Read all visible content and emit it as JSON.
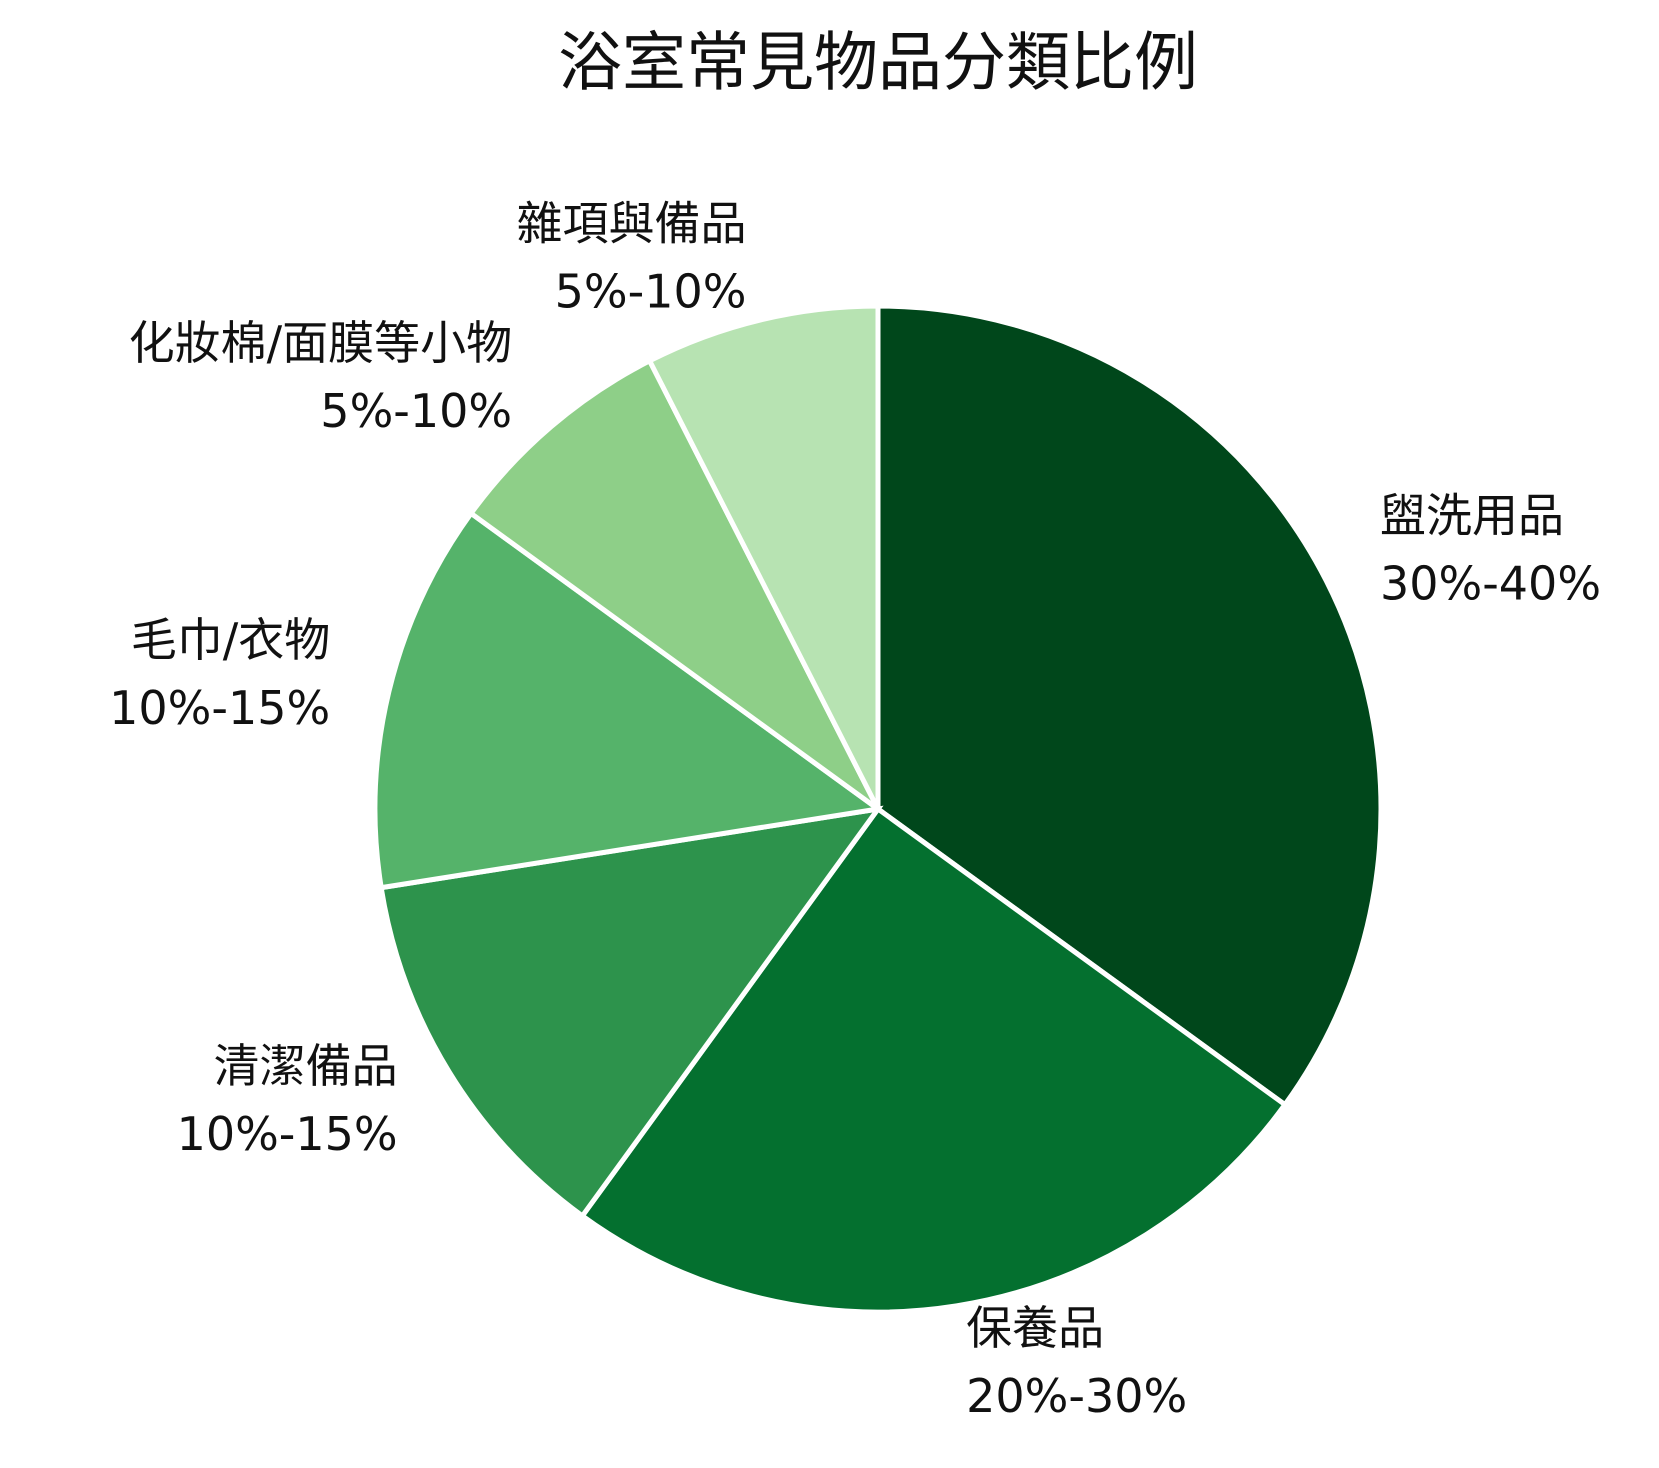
{
  "chart_data": {
    "type": "pie",
    "title": "浴室常見物品分類比例",
    "categories": [
      "盥洗用品",
      "保養品",
      "清潔備品",
      "毛巾/衣物",
      "化妝棉/面膜等小物",
      "雜項與備品"
    ],
    "values": [
      35,
      25,
      12.5,
      12.5,
      7.5,
      7.5
    ],
    "value_labels": [
      "30%-40%",
      "20%-30%",
      "10%-15%",
      "10%-15%",
      "5%-10%",
      "5%-10%"
    ],
    "colors": [
      "#00471b",
      "#04702f",
      "#2d934c",
      "#55b36a",
      "#8ecf88",
      "#b7e3b2"
    ]
  }
}
